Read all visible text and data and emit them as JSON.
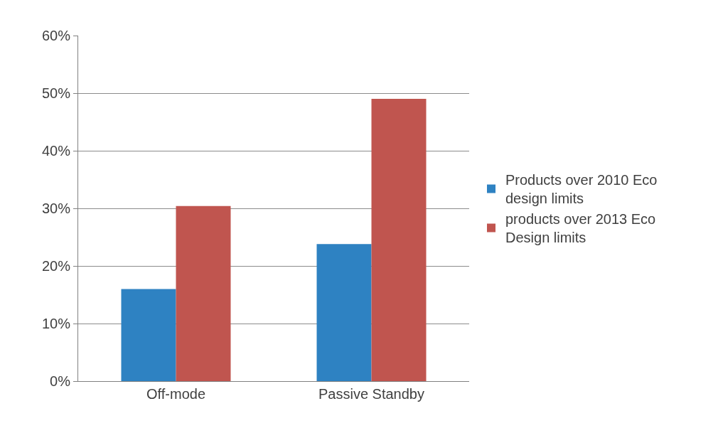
{
  "chart_data": {
    "type": "bar",
    "categories": [
      "Off-mode",
      "Passive Standby"
    ],
    "series": [
      {
        "name": "Products over 2010 Eco design limits",
        "color": "#2e82c2",
        "values": [
          16.0,
          23.8
        ]
      },
      {
        "name": "products over 2013 Eco Design limits",
        "color": "#c0554f",
        "values": [
          30.4,
          49.0
        ]
      }
    ],
    "ylim": [
      0,
      60
    ],
    "yticks": [
      {
        "value": 0,
        "label": "0%"
      },
      {
        "value": 10,
        "label": "10%"
      },
      {
        "value": 20,
        "label": "20%"
      },
      {
        "value": 30,
        "label": "30%"
      },
      {
        "value": 40,
        "label": "40%"
      },
      {
        "value": 50,
        "label": "50%"
      },
      {
        "value": 60,
        "label": "60%"
      }
    ],
    "grid": "y",
    "legend": "right"
  }
}
